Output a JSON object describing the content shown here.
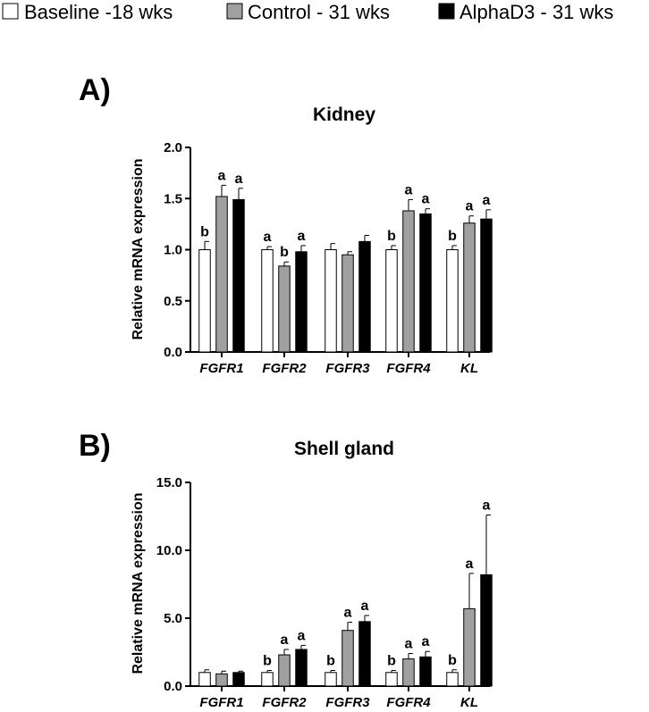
{
  "colors": {
    "baseline": "#ffffff",
    "control": "#a0a0a0",
    "alphad3": "#000000",
    "axis": "#000000"
  },
  "legend": [
    {
      "name": "Baseline -18 wks",
      "color": "#ffffff"
    },
    {
      "name": "Control - 31 wks",
      "color": "#a0a0a0"
    },
    {
      "name": "AlphaD3 - 31 wks",
      "color": "#000000"
    }
  ],
  "panels": {
    "a_label": "A)",
    "b_label": "B)"
  },
  "chart_data": [
    {
      "type": "bar",
      "panel": "A)",
      "title": "Kidney",
      "ylabel": "Relative mRNA expression",
      "xlabel": "",
      "ylim": [
        0,
        2.0
      ],
      "yticks": [
        "0.0",
        "0.5",
        "1.0",
        "1.5",
        "2.0"
      ],
      "categories": [
        "FGFR1",
        "FGFR2",
        "FGFR3",
        "FGFR4",
        "KL"
      ],
      "series": [
        {
          "name": "Baseline -18 wks",
          "values": [
            1.0,
            1.0,
            1.0,
            1.0,
            1.0
          ],
          "errors": [
            0.08,
            0.03,
            0.06,
            0.04,
            0.04
          ],
          "labels": [
            "b",
            "a",
            "",
            "b",
            "b"
          ]
        },
        {
          "name": "Control - 31 wks",
          "values": [
            1.52,
            0.84,
            0.95,
            1.38,
            1.26
          ],
          "errors": [
            0.11,
            0.04,
            0.03,
            0.11,
            0.07
          ],
          "labels": [
            "a",
            "b",
            "",
            "a",
            "a"
          ]
        },
        {
          "name": "AlphaD3 - 31 wks",
          "values": [
            1.49,
            0.98,
            1.08,
            1.35,
            1.3
          ],
          "errors": [
            0.11,
            0.06,
            0.06,
            0.05,
            0.09
          ],
          "labels": [
            "a",
            "a",
            "",
            "a",
            "a"
          ]
        }
      ]
    },
    {
      "type": "bar",
      "panel": "B)",
      "title": "Shell gland",
      "ylabel": "Relative mRNA expression",
      "xlabel": "",
      "ylim": [
        0,
        15.0
      ],
      "yticks": [
        "0.0",
        "5.0",
        "10.0",
        "15.0"
      ],
      "categories": [
        "FGFR1",
        "FGFR2",
        "FGFR3",
        "FGFR4",
        "KL"
      ],
      "series": [
        {
          "name": "Baseline -18 wks",
          "values": [
            1.0,
            1.0,
            1.0,
            1.0,
            1.0
          ],
          "errors": [
            0.2,
            0.15,
            0.15,
            0.15,
            0.2
          ],
          "labels": [
            "",
            "b",
            "b",
            "b",
            "b"
          ]
        },
        {
          "name": "Control - 31 wks",
          "values": [
            0.9,
            2.3,
            4.1,
            2.0,
            5.7
          ],
          "errors": [
            0.2,
            0.4,
            0.6,
            0.4,
            2.6
          ],
          "labels": [
            "",
            "a",
            "a",
            "a",
            "a"
          ]
        },
        {
          "name": "AlphaD3 - 31 wks",
          "values": [
            1.0,
            2.7,
            4.75,
            2.15,
            8.2
          ],
          "errors": [
            0.1,
            0.3,
            0.45,
            0.4,
            4.4
          ],
          "labels": [
            "",
            "a",
            "a",
            "a",
            "a"
          ]
        }
      ]
    }
  ]
}
